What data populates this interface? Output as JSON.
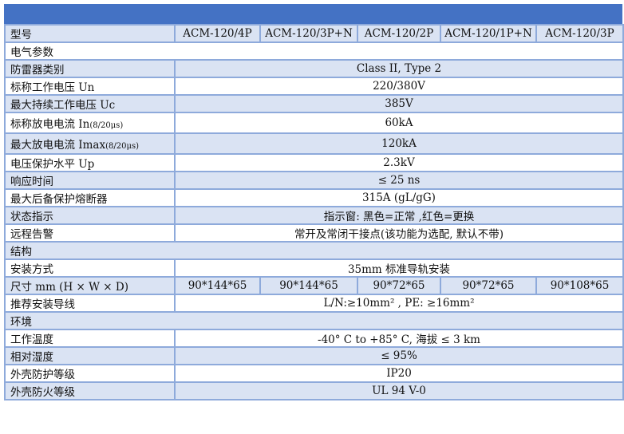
{
  "header_label": "型号",
  "models": [
    "ACM-120/4P",
    "ACM-120/3P+N",
    "ACM-120/2P",
    "ACM-120/1P+N",
    "ACM-120/3P"
  ],
  "rows": [
    {
      "label": "电气参数",
      "section": true
    },
    {
      "label": "防雷器类别",
      "value": "Class II, Type 2"
    },
    {
      "label": "标称工作电压 Un",
      "value": "220/380V"
    },
    {
      "label": "最大持续工作电压 Uc",
      "value": "385V"
    },
    {
      "label": "标称放电电流 In",
      "suffix": "(8/20μs)",
      "value": "60kA"
    },
    {
      "label": "最大放电电流 Imax",
      "suffix": "(8/20μs)",
      "value": "120kA"
    },
    {
      "label": "电压保护水平 Up",
      "value": "2.3kV"
    },
    {
      "label": "响应时间",
      "value": "≤ 25 ns"
    },
    {
      "label": "最大后备保护熔断器",
      "value": "315A (gL/gG)"
    },
    {
      "label": "状态指示",
      "value": "指示窗: 黑色=正常 ,红色=更换"
    },
    {
      "label": "远程告警",
      "value": "常开及常闭干接点(该功能为选配, 默认不带)"
    },
    {
      "label": "结构",
      "section": true
    },
    {
      "label": "安装方式",
      "value": "35mm 标准导轨安装"
    },
    {
      "label": "尺寸 mm (H × W × D)",
      "values": [
        "90*144*65",
        "90*144*65",
        "90*72*65",
        "90*72*65",
        "90*108*65"
      ]
    },
    {
      "label": "推荐安装导线",
      "value": "L/N:≥10mm² , PE: ≥16mm²"
    },
    {
      "label": "环境",
      "section": true
    },
    {
      "label": "工作温度",
      "value": "-40° C to +85° C, 海拔 ≤ 3 km"
    },
    {
      "label": "相对湿度",
      "value": "≤ 95%"
    },
    {
      "label": "外壳防护等级",
      "value": "IP20"
    },
    {
      "label": "外壳防火等级",
      "value": "UL 94 V-0"
    }
  ],
  "colors": {
    "header": "#4472c4",
    "band": "#dae3f3",
    "border": "#8eaadb"
  }
}
